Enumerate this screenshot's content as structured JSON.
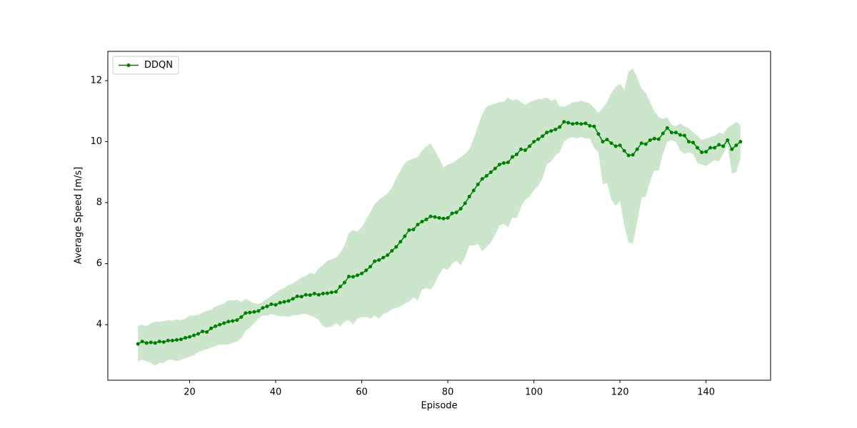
{
  "chart_data": {
    "type": "line",
    "xlabel": "Episode",
    "ylabel": "Average Speed [m/s]",
    "x": [
      8,
      9,
      10,
      11,
      12,
      13,
      14,
      15,
      16,
      17,
      18,
      19,
      20,
      21,
      22,
      23,
      24,
      25,
      26,
      27,
      28,
      29,
      30,
      31,
      32,
      33,
      34,
      35,
      36,
      37,
      38,
      39,
      40,
      41,
      42,
      43,
      44,
      45,
      46,
      47,
      48,
      49,
      50,
      51,
      52,
      53,
      54,
      55,
      56,
      57,
      58,
      59,
      60,
      61,
      62,
      63,
      64,
      65,
      66,
      67,
      68,
      69,
      70,
      71,
      72,
      73,
      74,
      75,
      76,
      77,
      78,
      79,
      80,
      81,
      82,
      83,
      84,
      85,
      86,
      87,
      88,
      89,
      90,
      91,
      92,
      93,
      94,
      95,
      96,
      97,
      98,
      99,
      100,
      101,
      102,
      103,
      104,
      105,
      106,
      107,
      108,
      109,
      110,
      111,
      112,
      113,
      114,
      115,
      116,
      117,
      118,
      119,
      120,
      121,
      122,
      123,
      124,
      125,
      126,
      127,
      128,
      129,
      130,
      131,
      132,
      133,
      134,
      135,
      136,
      137,
      138,
      139,
      140,
      141,
      142,
      143,
      144,
      145,
      146,
      147,
      148
    ],
    "series": [
      {
        "name": "DDQN",
        "color": "#008000",
        "band_color": "rgba(0,128,0,0.2)",
        "values": [
          3.37,
          3.45,
          3.4,
          3.42,
          3.4,
          3.45,
          3.43,
          3.48,
          3.48,
          3.5,
          3.52,
          3.57,
          3.6,
          3.65,
          3.7,
          3.78,
          3.76,
          3.88,
          3.95,
          4.0,
          4.05,
          4.1,
          4.12,
          4.15,
          4.25,
          4.38,
          4.4,
          4.42,
          4.45,
          4.55,
          4.6,
          4.67,
          4.65,
          4.72,
          4.75,
          4.78,
          4.85,
          4.93,
          4.92,
          4.98,
          4.97,
          5.02,
          4.98,
          5.02,
          5.03,
          5.06,
          5.08,
          5.25,
          5.38,
          5.58,
          5.57,
          5.62,
          5.68,
          5.78,
          5.9,
          6.08,
          6.12,
          6.2,
          6.28,
          6.42,
          6.55,
          6.72,
          6.9,
          7.1,
          7.12,
          7.28,
          7.38,
          7.45,
          7.55,
          7.53,
          7.5,
          7.48,
          7.5,
          7.65,
          7.68,
          7.8,
          7.98,
          8.2,
          8.4,
          8.6,
          8.78,
          8.88,
          9.0,
          9.12,
          9.25,
          9.3,
          9.32,
          9.5,
          9.58,
          9.75,
          9.72,
          9.85,
          10.0,
          10.08,
          10.18,
          10.3,
          10.35,
          10.4,
          10.48,
          10.65,
          10.62,
          10.58,
          10.6,
          10.58,
          10.6,
          10.52,
          10.5,
          10.25,
          10.0,
          10.07,
          9.95,
          9.85,
          9.88,
          9.7,
          9.55,
          9.57,
          9.75,
          9.95,
          9.92,
          10.05,
          10.1,
          10.08,
          10.27,
          10.45,
          10.3,
          10.3,
          10.22,
          10.2,
          10.0,
          9.97,
          9.8,
          9.65,
          9.67,
          9.8,
          9.8,
          9.9,
          9.85,
          10.05,
          9.75,
          9.88,
          10.0
        ],
        "upper": [
          3.95,
          4.0,
          3.95,
          4.05,
          4.1,
          4.1,
          4.12,
          4.15,
          4.12,
          4.18,
          4.15,
          4.2,
          4.3,
          4.3,
          4.32,
          4.4,
          4.45,
          4.5,
          4.6,
          4.65,
          4.7,
          4.8,
          4.8,
          4.82,
          4.75,
          4.85,
          4.78,
          4.7,
          4.68,
          4.75,
          4.85,
          4.95,
          5.05,
          5.15,
          5.2,
          5.3,
          5.35,
          5.45,
          5.55,
          5.6,
          5.7,
          5.65,
          5.85,
          5.95,
          6.1,
          6.15,
          6.2,
          6.35,
          6.6,
          7.0,
          7.1,
          7.05,
          7.2,
          7.45,
          7.7,
          7.95,
          8.1,
          8.2,
          8.3,
          8.5,
          8.8,
          9.05,
          9.3,
          9.4,
          9.45,
          9.5,
          9.7,
          9.85,
          9.95,
          9.7,
          9.45,
          9.15,
          9.25,
          9.3,
          9.4,
          9.5,
          9.6,
          9.75,
          10.1,
          10.5,
          10.9,
          11.15,
          11.2,
          11.25,
          11.3,
          11.3,
          11.45,
          11.35,
          11.4,
          11.3,
          11.2,
          11.3,
          11.35,
          11.4,
          11.4,
          11.45,
          11.35,
          11.4,
          11.15,
          11.15,
          11.2,
          11.3,
          11.3,
          11.35,
          11.3,
          11.25,
          11.1,
          10.95,
          11.1,
          11.3,
          11.6,
          11.8,
          11.9,
          11.7,
          12.3,
          12.4,
          12.1,
          11.75,
          11.6,
          11.3,
          11.0,
          10.8,
          10.75,
          10.8,
          10.55,
          10.5,
          10.6,
          10.5,
          10.45,
          10.3,
          10.2,
          10.05,
          10.1,
          10.15,
          10.2,
          10.3,
          10.25,
          10.45,
          10.55,
          10.65,
          10.55
        ],
        "lower": [
          2.8,
          2.85,
          2.8,
          2.75,
          2.65,
          2.75,
          2.75,
          2.85,
          2.85,
          2.8,
          2.85,
          2.9,
          2.95,
          3.0,
          3.1,
          3.15,
          3.2,
          3.25,
          3.3,
          3.35,
          3.35,
          3.35,
          3.4,
          3.45,
          3.55,
          3.8,
          3.9,
          4.05,
          4.2,
          4.3,
          4.3,
          4.35,
          4.3,
          4.28,
          4.28,
          4.25,
          4.32,
          4.3,
          4.35,
          4.35,
          4.3,
          4.25,
          4.15,
          3.95,
          3.9,
          3.95,
          4.05,
          3.95,
          4.1,
          4.15,
          4.0,
          4.2,
          4.25,
          4.25,
          4.2,
          4.3,
          4.2,
          4.35,
          4.4,
          4.5,
          4.55,
          4.6,
          4.7,
          4.75,
          4.9,
          4.8,
          5.15,
          5.2,
          5.15,
          5.35,
          5.65,
          5.85,
          5.8,
          6.0,
          6.1,
          5.95,
          6.2,
          6.6,
          6.6,
          6.65,
          6.4,
          6.55,
          6.7,
          6.95,
          7.25,
          7.3,
          7.2,
          7.5,
          7.5,
          7.85,
          8.1,
          8.2,
          8.4,
          8.55,
          8.8,
          9.25,
          9.35,
          9.55,
          9.65,
          10.0,
          10.1,
          10.15,
          10.1,
          10.15,
          10.1,
          10.1,
          9.8,
          9.65,
          8.6,
          8.65,
          8.1,
          7.9,
          8.05,
          7.25,
          6.7,
          6.65,
          7.35,
          8.15,
          8.2,
          8.7,
          9.05,
          9.05,
          9.6,
          10.0,
          10.05,
          10.0,
          9.7,
          9.6,
          9.65,
          9.6,
          9.3,
          9.25,
          9.2,
          9.3,
          9.4,
          9.35,
          9.6,
          9.9,
          8.95,
          9.0,
          9.45
        ]
      }
    ],
    "xlim": [
      1,
      155
    ],
    "ylim": [
      2.18,
      12.96
    ],
    "xticks": [
      20,
      40,
      60,
      80,
      100,
      120,
      140
    ],
    "yticks": [
      4,
      6,
      8,
      10,
      12
    ],
    "legend": "upper left",
    "grid": false
  }
}
